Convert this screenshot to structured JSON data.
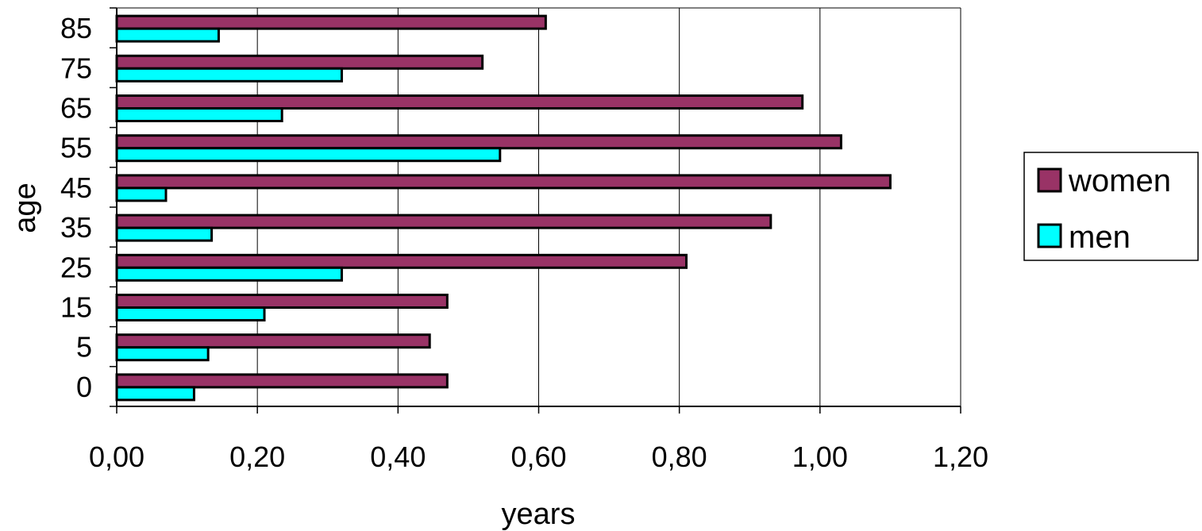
{
  "chart_data": {
    "type": "bar",
    "orientation": "horizontal",
    "title": "",
    "xlabel": "years",
    "ylabel": "age",
    "categories": [
      "0",
      "5",
      "15",
      "25",
      "35",
      "45",
      "55",
      "65",
      "75",
      "85"
    ],
    "series": [
      {
        "name": "women",
        "color": "#993366",
        "values": [
          0.47,
          0.445,
          0.47,
          0.81,
          0.93,
          1.1,
          1.03,
          0.975,
          0.52,
          0.61
        ]
      },
      {
        "name": "men",
        "color": "#00FFFF",
        "values": [
          0.11,
          0.13,
          0.21,
          0.32,
          0.135,
          0.07,
          0.545,
          0.235,
          0.32,
          0.145
        ]
      }
    ],
    "xlim": [
      0,
      1.2
    ],
    "xticks": [
      "0,00",
      "0,20",
      "0,40",
      "0,60",
      "0,80",
      "1,00",
      "1,20"
    ],
    "grid": {
      "vertical": true,
      "horizontal": false
    },
    "legend": {
      "position": "right"
    }
  }
}
